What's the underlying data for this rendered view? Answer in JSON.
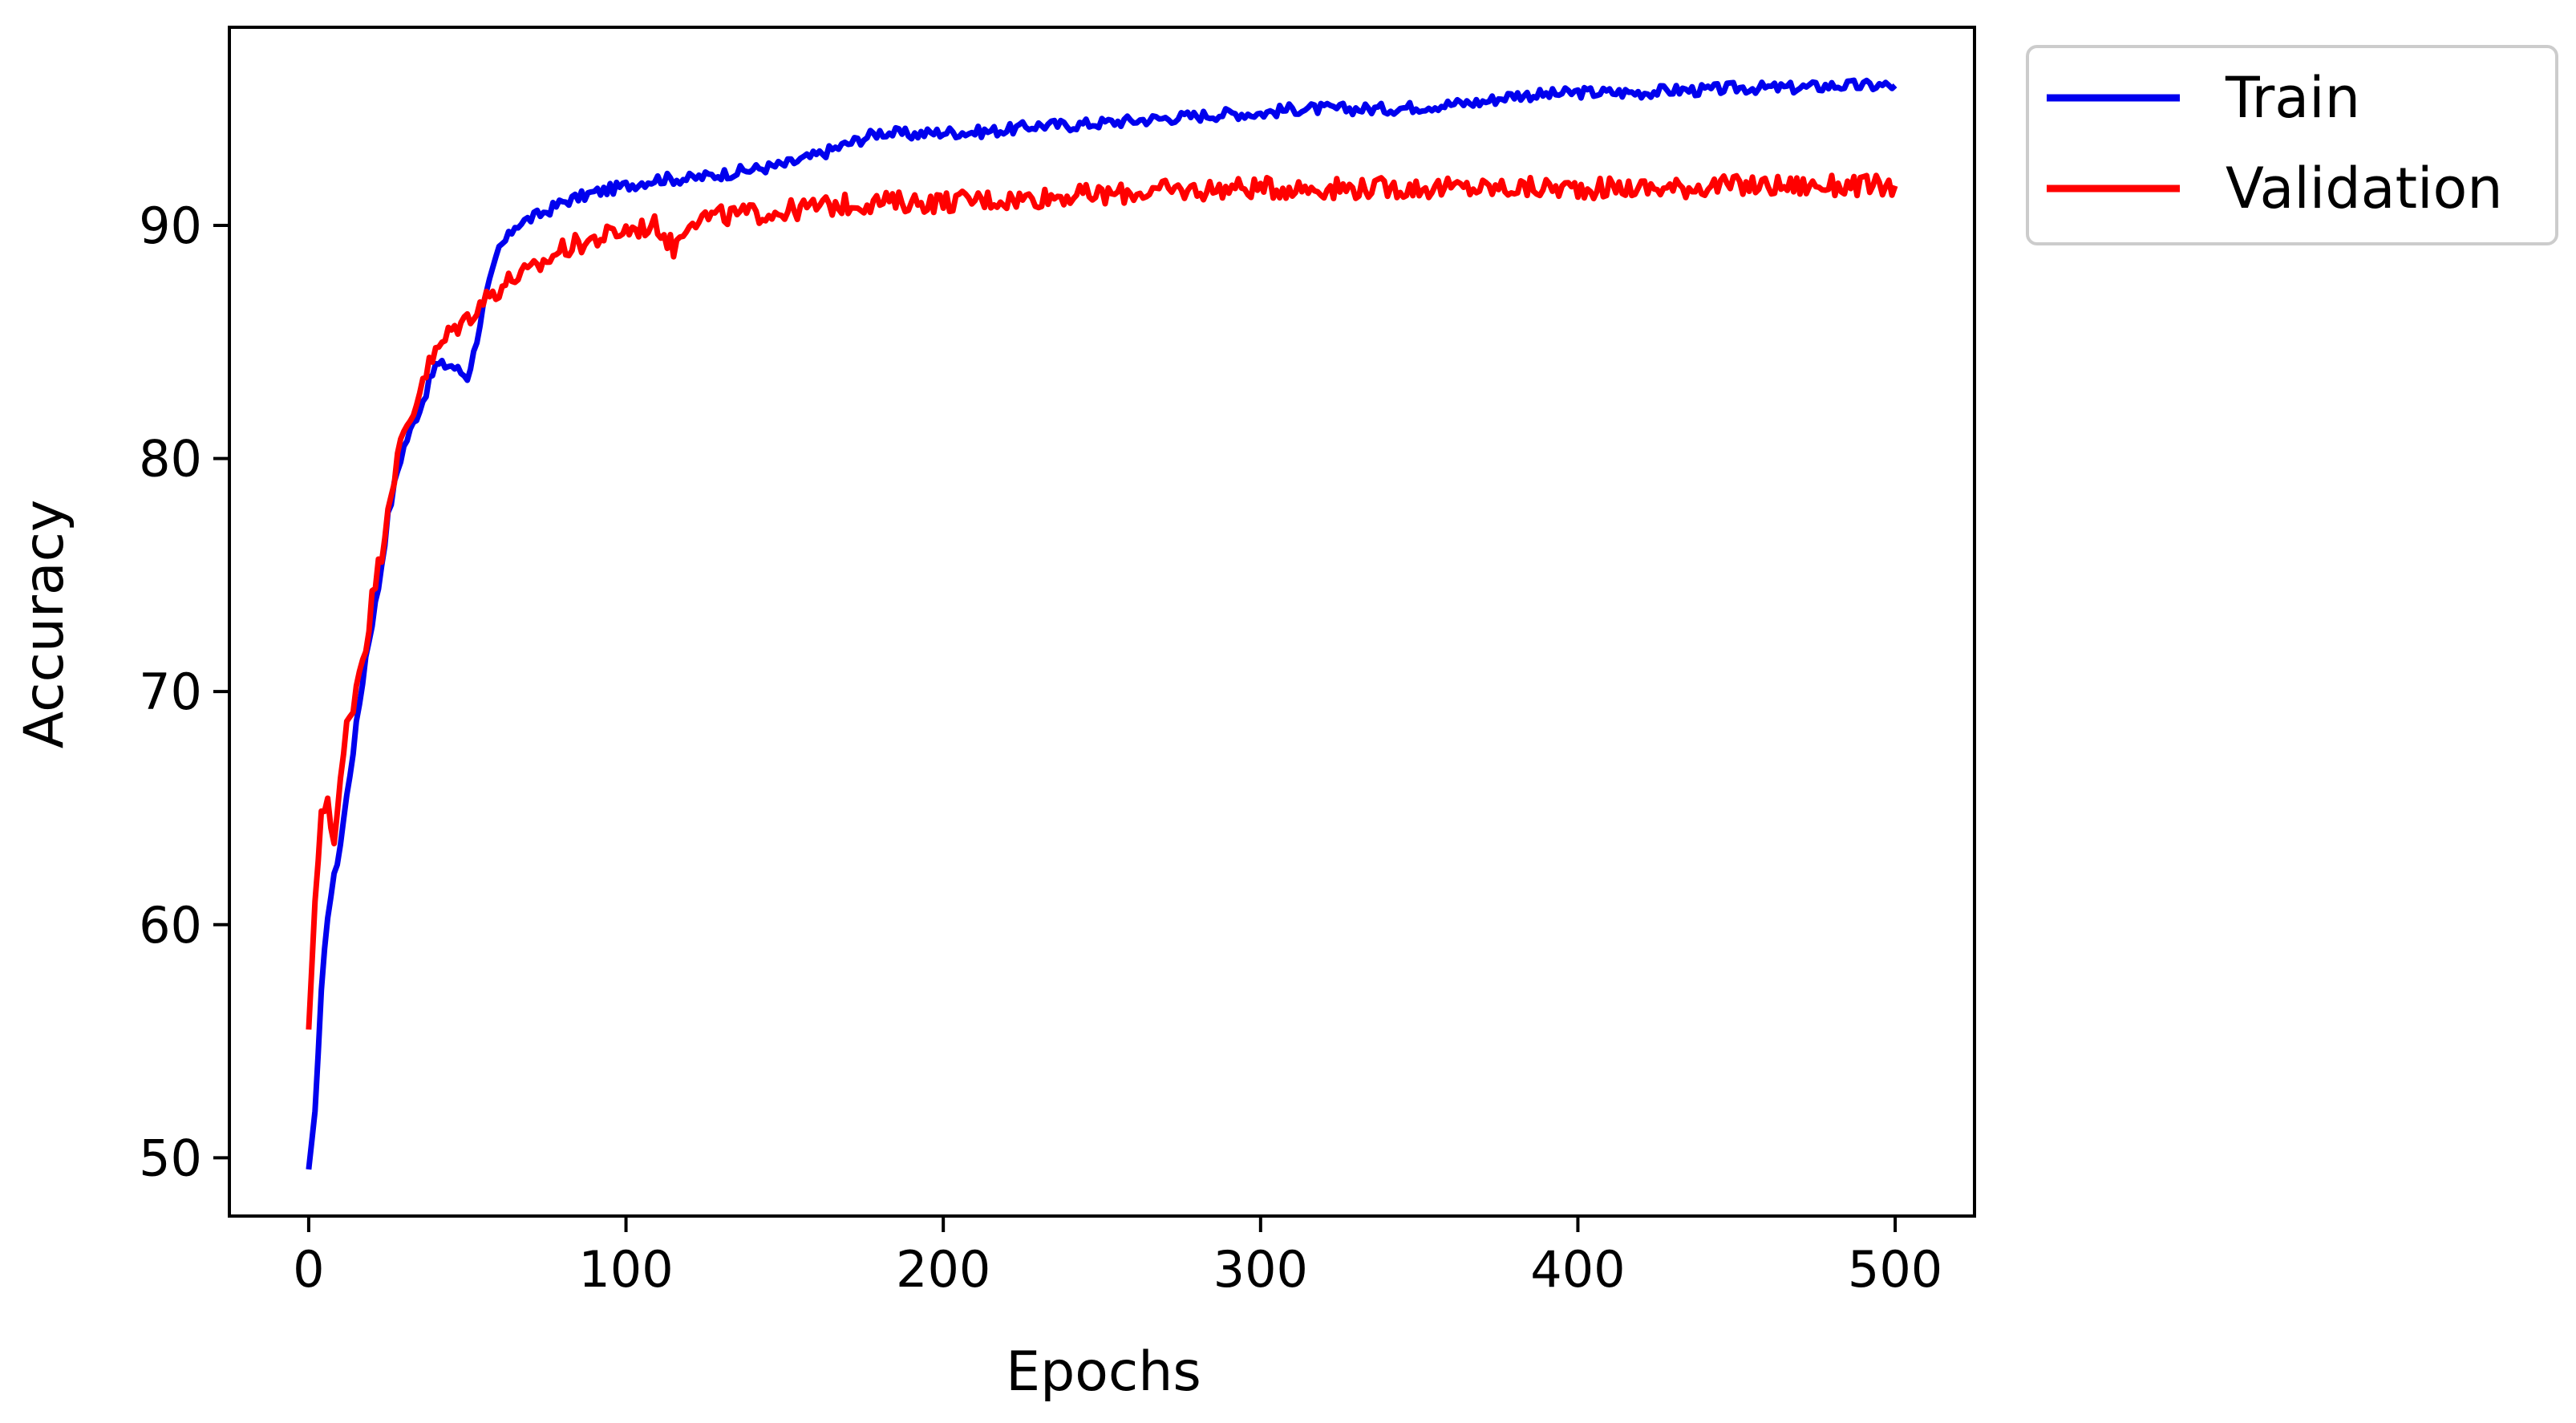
{
  "chart_data": {
    "type": "line",
    "title": "",
    "xlabel": "Epochs",
    "ylabel": "Accuracy",
    "xlim": [
      -25,
      525
    ],
    "ylim": [
      47.5,
      98.5
    ],
    "xticks": [
      0,
      100,
      200,
      300,
      400,
      500
    ],
    "yticks": [
      50,
      60,
      70,
      80,
      90
    ],
    "xtick_labels": [
      "0",
      "100",
      "200",
      "300",
      "400",
      "500"
    ],
    "ytick_labels": [
      "50",
      "60",
      "70",
      "80",
      "90"
    ],
    "grid": false,
    "legend_position": "outside top-right",
    "series": [
      {
        "name": "Train",
        "color": "#0000ee",
        "x": [
          0,
          2,
          4,
          6,
          8,
          10,
          12,
          14,
          16,
          18,
          20,
          22,
          25,
          28,
          30,
          33,
          36,
          40,
          45,
          50,
          52,
          55,
          58,
          60,
          63,
          65,
          70,
          75,
          80,
          90,
          100,
          110,
          120,
          130,
          140,
          150,
          160,
          170,
          180,
          190,
          200,
          210,
          220,
          230,
          240,
          250,
          260,
          270,
          280,
          290,
          300,
          310,
          320,
          330,
          340,
          350,
          360,
          370,
          380,
          390,
          400,
          410,
          420,
          430,
          440,
          450,
          460,
          470,
          480,
          490,
          500
        ],
        "y": [
          49.5,
          52.0,
          57.0,
          60.5,
          62.0,
          63.5,
          65.5,
          67.5,
          69.5,
          71.5,
          73.0,
          74.5,
          77.5,
          79.5,
          80.5,
          81.5,
          82.5,
          84.0,
          84.0,
          83.5,
          84.5,
          86.5,
          88.0,
          89.0,
          89.5,
          90.0,
          90.3,
          90.6,
          91.0,
          91.4,
          91.7,
          92.0,
          92.0,
          92.2,
          92.4,
          92.6,
          93.0,
          93.5,
          94.0,
          93.9,
          94.0,
          94.0,
          94.1,
          94.3,
          94.3,
          94.4,
          94.5,
          94.6,
          94.7,
          94.8,
          94.8,
          95.0,
          95.0,
          95.0,
          95.0,
          95.1,
          95.2,
          95.3,
          95.6,
          95.6,
          95.7,
          95.7,
          95.7,
          95.8,
          95.8,
          95.9,
          95.9,
          95.9,
          96.0,
          96.0,
          96.0
        ]
      },
      {
        "name": "Validation",
        "color": "#ff0000",
        "x": [
          0,
          2,
          4,
          6,
          8,
          10,
          12,
          14,
          16,
          18,
          20,
          23,
          25,
          28,
          30,
          33,
          36,
          40,
          45,
          50,
          55,
          60,
          65,
          70,
          75,
          80,
          85,
          90,
          95,
          100,
          110,
          115,
          120,
          130,
          140,
          150,
          160,
          170,
          180,
          190,
          200,
          210,
          220,
          230,
          240,
          250,
          260,
          270,
          280,
          290,
          300,
          310,
          320,
          330,
          340,
          350,
          360,
          370,
          380,
          390,
          400,
          410,
          420,
          430,
          440,
          450,
          460,
          470,
          480,
          490,
          500
        ],
        "y": [
          55.5,
          61.0,
          64.5,
          65.5,
          63.5,
          66.0,
          68.5,
          69.5,
          71.0,
          72.0,
          74.0,
          76.0,
          78.0,
          80.0,
          81.0,
          82.0,
          83.5,
          84.5,
          85.5,
          86.0,
          86.8,
          87.3,
          87.8,
          88.0,
          88.5,
          89.0,
          89.2,
          89.4,
          89.6,
          89.8,
          90.0,
          89.0,
          90.3,
          90.4,
          90.5,
          90.6,
          90.8,
          90.9,
          91.0,
          91.0,
          91.0,
          91.1,
          91.1,
          91.2,
          91.3,
          91.3,
          91.4,
          91.5,
          91.5,
          91.6,
          91.6,
          91.6,
          91.6,
          91.6,
          91.6,
          91.6,
          91.6,
          91.6,
          91.6,
          91.6,
          91.6,
          91.6,
          91.6,
          91.6,
          91.7,
          91.7,
          91.7,
          91.7,
          91.7,
          91.7,
          91.7
        ]
      }
    ]
  }
}
